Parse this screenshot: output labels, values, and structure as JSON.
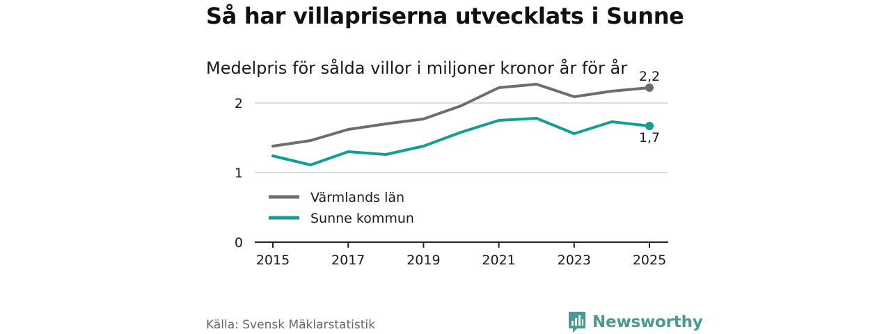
{
  "header": {
    "title": "Så har villapriserna utvecklats i Sunne",
    "subtitle": "Medelpris för sålda villor i miljoner kronor år för år"
  },
  "footer": {
    "source": "Källa: Svensk Mäklarstatistik",
    "brand": "Newsworthy"
  },
  "colors": {
    "series_lan": "#6e6c72",
    "series_kommun": "#139e94",
    "grid": "#dddddd",
    "axis": "#222222",
    "brand": "#4a9a92"
  },
  "chart_data": {
    "type": "line",
    "title": "Så har villapriserna utvecklats i Sunne",
    "subtitle": "Medelpris för sålda villor i miljoner kronor år för år",
    "xlabel": "",
    "ylabel": "",
    "x": [
      2015,
      2016,
      2017,
      2018,
      2019,
      2020,
      2021,
      2022,
      2023,
      2024,
      2025
    ],
    "xticks": [
      "2015",
      "2017",
      "2019",
      "2021",
      "2023",
      "2025"
    ],
    "yticks": [
      "0",
      "1",
      "2"
    ],
    "ylim": [
      0,
      2.4
    ],
    "xlim": [
      2015,
      2025
    ],
    "grid": true,
    "legend_position": "inside-bottom-left",
    "series": [
      {
        "name": "Värmlands län",
        "values": [
          1.38,
          1.46,
          1.62,
          1.7,
          1.77,
          1.96,
          2.22,
          2.27,
          2.09,
          2.17,
          2.22
        ],
        "end_label": "2,2"
      },
      {
        "name": "Sunne kommun",
        "values": [
          1.24,
          1.11,
          1.3,
          1.26,
          1.38,
          1.58,
          1.75,
          1.78,
          1.56,
          1.73,
          1.67
        ],
        "end_label": "1,7"
      }
    ]
  }
}
